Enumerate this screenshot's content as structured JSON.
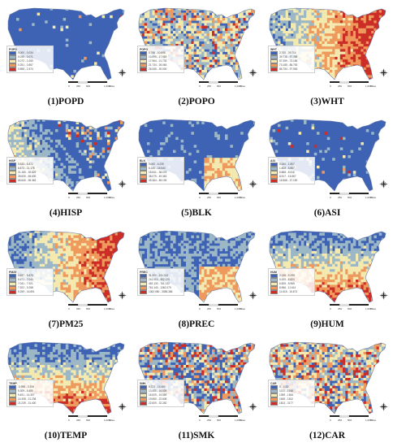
{
  "scale_labels": [
    "0",
    "250",
    "500",
    "1,000",
    "Miles"
  ],
  "panels": [
    {
      "title": "(1)POPD",
      "legend_title": "POPD",
      "legend": [
        "0.000 - 0.034",
        "0.035 - 0.071",
        "0.072 - 0.250",
        "0.251 - 0.857",
        "0.858 - 2.474"
      ],
      "colors": [
        "#3f63b4",
        "#9cb7c6",
        "#f4eab0",
        "#ef9a5c",
        "#cc2d26"
      ],
      "mix": [
        0.96,
        0.02,
        0.01,
        0.008,
        0.002
      ]
    },
    {
      "title": "(2)POPO",
      "legend_title": "POPO",
      "legend": [
        "0.766 - 10.698",
        "10.699 - 17.963",
        "17.964 - 21.733",
        "21.734 - 26.064",
        "26.065 - 30.000"
      ],
      "colors": [
        "#3f63b4",
        "#9cb7c6",
        "#f4eab0",
        "#ef9a5c",
        "#cc2d26"
      ],
      "mix": [
        0.22,
        0.3,
        0.28,
        0.14,
        0.06
      ]
    },
    {
      "title": "(3)WHT",
      "legend_title": "WHT",
      "legend": [
        "2.700 - 39.714",
        "39.715 - 57.358",
        "57.359 - 73.184",
        "73.185 - 86.753",
        "86.754 - 97.953"
      ],
      "colors": [
        "#3f63b4",
        "#9cb7c6",
        "#f4eab0",
        "#ef9a5c",
        "#cc2d26"
      ],
      "mix": [
        0.05,
        0.06,
        0.12,
        0.27,
        0.5
      ]
    },
    {
      "title": "(4)HISP",
      "legend_title": "HISP",
      "legend": [
        "0.533 - 8.872",
        "8.873 - 21.178",
        "21.180 - 39.829",
        "39.830 - 65.639",
        "65.640 - 96.363"
      ],
      "colors": [
        "#3f63b4",
        "#9cb7c6",
        "#f4eab0",
        "#ef9a5c",
        "#cc2d26"
      ],
      "mix": [
        0.72,
        0.1,
        0.08,
        0.06,
        0.04
      ]
    },
    {
      "title": "(5)BLK",
      "legend_title": "BLK",
      "legend": [
        "0.000 - 6.239",
        "6.240 - 18.540",
        "18.541 - 38.078",
        "38.079 - 49.363",
        "49.364 - 85.193"
      ],
      "colors": [
        "#3f63b4",
        "#9cb7c6",
        "#f4eab0",
        "#ef9a5c",
        "#cc2d26"
      ],
      "mix": [
        0.82,
        0.08,
        0.05,
        0.03,
        0.02
      ]
    },
    {
      "title": "(6)ASI",
      "legend_title": "ASI",
      "legend": [
        "0.000 - 1.807",
        "1.808 - 5.867",
        "5.868 - 8.516",
        "8.517 - 15.567",
        "15.568 - 37.190"
      ],
      "colors": [
        "#3f63b4",
        "#9cb7c6",
        "#f4eab0",
        "#ef9a5c",
        "#cc2d26"
      ],
      "mix": [
        0.94,
        0.04,
        0.01,
        0.006,
        0.004
      ]
    },
    {
      "title": "(7)PM25",
      "legend_title": "PM25",
      "legend": [
        "3.697 - 5.670",
        "5.671 - 7.040",
        "7.041 - 7.921",
        "7.922 - 9.258",
        "9.259 - 16.891"
      ],
      "colors": [
        "#3f63b4",
        "#9cb7c6",
        "#f4eab0",
        "#ef9a5c",
        "#cc2d26"
      ],
      "mix": [
        0.2,
        0.2,
        0.2,
        0.2,
        0.2
      ]
    },
    {
      "title": "(8)PREC",
      "legend_title": "PREC",
      "legend": [
        "31.300 - 241.012",
        "241.013 - 462.129",
        "462.130 - 761.142",
        "761.143 - 1362.079",
        "1362.080 - 3088.386"
      ],
      "colors": [
        "#3f63b4",
        "#9cb7c6",
        "#f4eab0",
        "#ef9a5c",
        "#cc2d26"
      ],
      "mix": [
        0.4,
        0.3,
        0.2,
        0.08,
        0.02
      ]
    },
    {
      "title": "(9)HUM",
      "legend_title": "HUM",
      "legend": [
        "2.136 - 5.099",
        "5.100 - 6.824",
        "6.825 - 8.965",
        "8.966 - 11.614",
        "11.615 - 15.673"
      ],
      "colors": [
        "#3f63b4",
        "#9cb7c6",
        "#f4eab0",
        "#ef9a5c",
        "#cc2d26"
      ],
      "mix": [
        0.3,
        0.2,
        0.2,
        0.18,
        0.12
      ]
    },
    {
      "title": "(10)TEMP",
      "legend_title": "TEMP",
      "legend": [
        "-3.995 - 5.308",
        "5.309 - 9.490",
        "9.491 - 14.307",
        "14.308 - 21.238",
        "21.239 - 31.400"
      ],
      "colors": [
        "#3f63b4",
        "#9cb7c6",
        "#f4eab0",
        "#ef9a5c",
        "#cc2d26"
      ],
      "mix": [
        0.22,
        0.2,
        0.22,
        0.2,
        0.16
      ]
    },
    {
      "title": "(11)SMK",
      "legend_title": "SMK",
      "legend": [
        "6.723 - 13.400",
        "13.401 - 16.528",
        "16.529 - 19.559",
        "19.560 - 22.608",
        "22.609 - 32.282"
      ],
      "colors": [
        "#3f63b4",
        "#9cb7c6",
        "#f4eab0",
        "#ef9a5c",
        "#cc2d26"
      ],
      "mix": [
        0.34,
        0.24,
        0.18,
        0.14,
        0.1
      ]
    },
    {
      "title": "(12)CAR",
      "legend_title": "CAR",
      "legend": [
        "0 - 1130",
        "1131 - 1358",
        "1359 - 1544",
        "1545 - 1812",
        "1813 - 3177"
      ],
      "colors": [
        "#3f63b4",
        "#9cb7c6",
        "#f4eab0",
        "#ef9a5c",
        "#cc2d26"
      ],
      "mix": [
        0.18,
        0.22,
        0.26,
        0.2,
        0.14
      ]
    }
  ]
}
